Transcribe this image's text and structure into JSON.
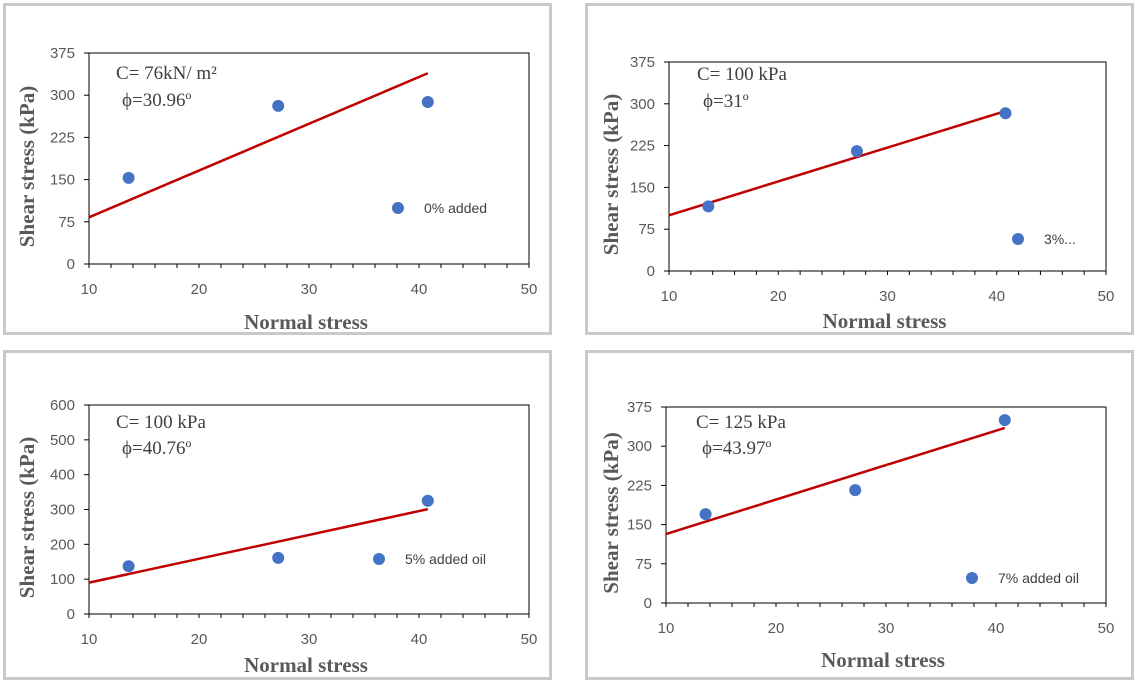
{
  "chart_data": [
    {
      "type": "scatter",
      "xlabel": "Normal stress",
      "ylabel": "Shear stress (kPa)",
      "xlim": [
        10,
        50
      ],
      "ylim": [
        0,
        375
      ],
      "xticks": [
        "10",
        "20",
        "30",
        "40",
        "50"
      ],
      "yticks": [
        "0",
        "75",
        "150",
        "225",
        "300",
        "375"
      ],
      "annotation_c": "C= 76kN/ m²",
      "annotation_phi": "ϕ=30.96º",
      "legend": "0% added",
      "series": [
        {
          "name": "0% added",
          "color": "#4472c4",
          "x": [
            13.6,
            27.2,
            40.8
          ],
          "y": [
            153,
            281,
            288
          ]
        }
      ],
      "trendline": {
        "color": "#c00000",
        "x": [
          10,
          40.8
        ],
        "y": [
          83,
          339
        ]
      }
    },
    {
      "type": "scatter",
      "xlabel": "Normal stress",
      "ylabel": "Shear stress (kPa)",
      "xlim": [
        10,
        50
      ],
      "ylim": [
        0,
        375
      ],
      "xticks": [
        "10",
        "20",
        "30",
        "40",
        "50"
      ],
      "yticks": [
        "0",
        "75",
        "150",
        "225",
        "300",
        "375"
      ],
      "annotation_c": "C=  100 kPa",
      "annotation_phi": "ϕ=31º",
      "legend": "3%...",
      "series": [
        {
          "name": "3%...",
          "color": "#4472c4",
          "x": [
            13.6,
            27.2,
            40.8
          ],
          "y": [
            116,
            215,
            283
          ]
        }
      ],
      "trendline": {
        "color": "#c00000",
        "x": [
          10,
          40.8
        ],
        "y": [
          100,
          287
        ]
      }
    },
    {
      "type": "scatter",
      "xlabel": "Normal stress",
      "ylabel": "Shear stress (kPa)",
      "xlim": [
        10,
        50
      ],
      "ylim": [
        0,
        600
      ],
      "xticks": [
        "10",
        "20",
        "30",
        "40",
        "50"
      ],
      "yticks": [
        "0",
        "100",
        "200",
        "300",
        "400",
        "500",
        "600"
      ],
      "annotation_c": "C= 100 kPa",
      "annotation_phi": "ϕ=40.76º",
      "legend": "5% added oil",
      "series": [
        {
          "name": "5% added oil",
          "color": "#4472c4",
          "x": [
            13.6,
            27.2,
            40.8
          ],
          "y": [
            137,
            161,
            325
          ]
        }
      ],
      "trendline": {
        "color": "#c00000",
        "x": [
          10,
          40.8
        ],
        "y": [
          90,
          301
        ]
      }
    },
    {
      "type": "scatter",
      "xlabel": "Normal stress",
      "ylabel": "Shear stress (kPa)",
      "xlim": [
        10,
        50
      ],
      "ylim": [
        0,
        375
      ],
      "xticks": [
        "10",
        "20",
        "30",
        "40",
        "50"
      ],
      "yticks": [
        "0",
        "75",
        "150",
        "225",
        "300",
        "375"
      ],
      "annotation_c": "C= 125 kPa",
      "annotation_phi": "ϕ=43.97º",
      "legend": "7% added oil",
      "series": [
        {
          "name": "7% added oil",
          "color": "#4472c4",
          "x": [
            13.6,
            27.2,
            40.8
          ],
          "y": [
            170,
            216,
            350
          ]
        }
      ],
      "trendline": {
        "color": "#c00000",
        "x": [
          10,
          40.8
        ],
        "y": [
          132,
          335
        ]
      }
    }
  ]
}
